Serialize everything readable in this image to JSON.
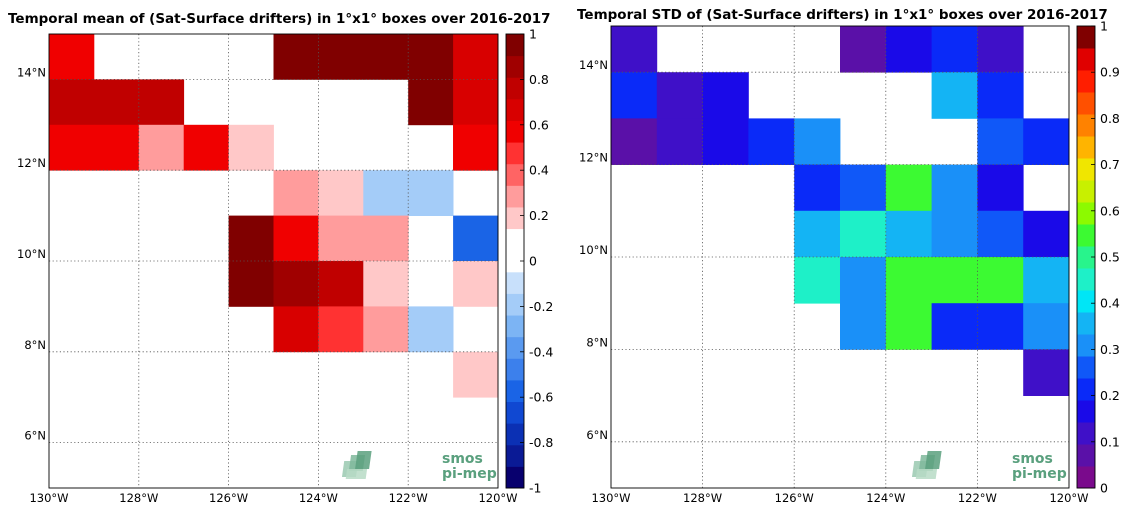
{
  "chart_data": [
    {
      "type": "heatmap",
      "title": "Temporal mean of (Sat-Surface drifters) in 1°x1° boxes over 2016-2017",
      "xlim": [
        -130,
        -120
      ],
      "ylim": [
        5,
        15
      ],
      "xticks": [
        {
          "value": -130,
          "label": "130°W"
        },
        {
          "value": -128,
          "label": "128°W"
        },
        {
          "value": -126,
          "label": "126°W"
        },
        {
          "value": -124,
          "label": "124°W"
        },
        {
          "value": -122,
          "label": "122°W"
        },
        {
          "value": -120,
          "label": "120°W"
        }
      ],
      "yticks": [
        {
          "value": 6,
          "label": "6°N"
        },
        {
          "value": 8,
          "label": "8°N"
        },
        {
          "value": 10,
          "label": "10°N"
        },
        {
          "value": 12,
          "label": "12°N"
        },
        {
          "value": 14,
          "label": "14°N"
        }
      ],
      "grid": true,
      "colorbar": {
        "range": [
          -1,
          1
        ],
        "ticks": [
          "-1",
          "-0.8",
          "-0.6",
          "-0.4",
          "-0.2",
          "0",
          "0.2",
          "0.4",
          "0.6",
          "0.8",
          "1"
        ],
        "colors": [
          "#08006e",
          "#0a1a95",
          "#0b30b4",
          "#1048d2",
          "#1a64e6",
          "#3c80ec",
          "#5a9af0",
          "#7cb4f4",
          "#a4ccf8",
          "#c8e0fb",
          "#ffffff",
          "#ffffff",
          "#ffc8c8",
          "#ff9c9c",
          "#ff6464",
          "#ff3232",
          "#f00000",
          "#d80000",
          "#c00000",
          "#a00000",
          "#800000"
        ]
      },
      "cells": [
        {
          "lon": -130,
          "lat": 14,
          "value": 0.55
        },
        {
          "lon": -125,
          "lat": 14,
          "value": 0.95
        },
        {
          "lon": -124,
          "lat": 14,
          "value": 0.95
        },
        {
          "lon": -123,
          "lat": 14,
          "value": 0.95
        },
        {
          "lon": -122,
          "lat": 14,
          "value": 0.95
        },
        {
          "lon": -121,
          "lat": 14,
          "value": 0.65
        },
        {
          "lon": -130,
          "lat": 13,
          "value": 0.75
        },
        {
          "lon": -129,
          "lat": 13,
          "value": 0.75
        },
        {
          "lon": -128,
          "lat": 13,
          "value": 0.75
        },
        {
          "lon": -122,
          "lat": 13,
          "value": 0.95
        },
        {
          "lon": -121,
          "lat": 13,
          "value": 0.7
        },
        {
          "lon": -130,
          "lat": 12,
          "value": 0.6
        },
        {
          "lon": -129,
          "lat": 12,
          "value": 0.6
        },
        {
          "lon": -128,
          "lat": 12,
          "value": 0.25
        },
        {
          "lon": -127,
          "lat": 12,
          "value": 0.6
        },
        {
          "lon": -126,
          "lat": 12,
          "value": 0.15
        },
        {
          "lon": -121,
          "lat": 12,
          "value": 0.6
        },
        {
          "lon": -120.999,
          "lat": 12,
          "value": 0.6
        },
        {
          "lon": -125,
          "lat": 11,
          "value": 0.25
        },
        {
          "lon": -124,
          "lat": 11,
          "value": 0.15
        },
        {
          "lon": -123,
          "lat": 11,
          "value": -0.15
        },
        {
          "lon": -122,
          "lat": 11,
          "value": -0.15
        },
        {
          "lon": -126,
          "lat": 10,
          "value": 0.95
        },
        {
          "lon": -125,
          "lat": 10,
          "value": 0.6
        },
        {
          "lon": -124,
          "lat": 10,
          "value": 0.25
        },
        {
          "lon": -123,
          "lat": 10,
          "value": 0.25
        },
        {
          "lon": -121,
          "lat": 10,
          "value": -0.55
        },
        {
          "lon": -126,
          "lat": 9,
          "value": 0.95
        },
        {
          "lon": -125,
          "lat": 9,
          "value": 0.9
        },
        {
          "lon": -124,
          "lat": 9,
          "value": 0.8
        },
        {
          "lon": -123,
          "lat": 9,
          "value": 0.15
        },
        {
          "lon": -121,
          "lat": 9,
          "value": 0.15
        },
        {
          "lon": -125,
          "lat": 8,
          "value": 0.7
        },
        {
          "lon": -124,
          "lat": 8,
          "value": 0.5
        },
        {
          "lon": -123,
          "lat": 8,
          "value": 0.25
        },
        {
          "lon": -122,
          "lat": 8,
          "value": -0.15
        },
        {
          "lon": -121,
          "lat": 7,
          "value": 0.15
        }
      ]
    },
    {
      "type": "heatmap",
      "title": "Temporal STD of (Sat-Surface drifters) in 1°x1° boxes over 2016-2017",
      "xlim": [
        -130,
        -120
      ],
      "ylim": [
        5,
        15
      ],
      "xticks": [
        {
          "value": -130,
          "label": "130°W"
        },
        {
          "value": -128,
          "label": "128°W"
        },
        {
          "value": -126,
          "label": "126°W"
        },
        {
          "value": -124,
          "label": "124°W"
        },
        {
          "value": -122,
          "label": "122°W"
        },
        {
          "value": -120,
          "label": "120°W"
        }
      ],
      "yticks": [
        {
          "value": 6,
          "label": "6°N"
        },
        {
          "value": 8,
          "label": "8°N"
        },
        {
          "value": 10,
          "label": "10°N"
        },
        {
          "value": 12,
          "label": "12°N"
        },
        {
          "value": 14,
          "label": "14°N"
        }
      ],
      "grid": true,
      "colorbar": {
        "range": [
          0,
          1
        ],
        "ticks": [
          "0",
          "0.1",
          "0.2",
          "0.3",
          "0.4",
          "0.5",
          "0.6",
          "0.7",
          "0.8",
          "0.9",
          "1"
        ],
        "colors": [
          "#7a0a8c",
          "#5a10a8",
          "#3f10c8",
          "#1a0ae8",
          "#0a2af8",
          "#1058f8",
          "#1a90f8",
          "#14b4f4",
          "#00e6f6",
          "#1ef0c8",
          "#28f48c",
          "#3cfa32",
          "#8cfa00",
          "#c8f000",
          "#f0e600",
          "#ffb400",
          "#ff8200",
          "#ff5000",
          "#ff1e00",
          "#e00000",
          "#800000"
        ]
      },
      "cells": [
        {
          "lon": -130,
          "lat": 14,
          "value": 0.12
        },
        {
          "lon": -125,
          "lat": 14,
          "value": 0.05
        },
        {
          "lon": -124,
          "lat": 14,
          "value": 0.15
        },
        {
          "lon": -123,
          "lat": 14,
          "value": 0.2
        },
        {
          "lon": -122,
          "lat": 14,
          "value": 0.12
        },
        {
          "lon": -130,
          "lat": 13,
          "value": 0.2
        },
        {
          "lon": -129,
          "lat": 13,
          "value": 0.12
        },
        {
          "lon": -128,
          "lat": 13,
          "value": 0.15
        },
        {
          "lon": -123,
          "lat": 13,
          "value": 0.38
        },
        {
          "lon": -122,
          "lat": 13,
          "value": 0.2
        },
        {
          "lon": -130,
          "lat": 12,
          "value": 0.05
        },
        {
          "lon": -129,
          "lat": 12,
          "value": 0.12
        },
        {
          "lon": -128,
          "lat": 12,
          "value": 0.15
        },
        {
          "lon": -127,
          "lat": 12,
          "value": 0.2
        },
        {
          "lon": -126,
          "lat": 12,
          "value": 0.33
        },
        {
          "lon": -122,
          "lat": 12,
          "value": 0.24
        },
        {
          "lon": -121,
          "lat": 12,
          "value": 0.2
        },
        {
          "lon": -126,
          "lat": 11,
          "value": 0.2
        },
        {
          "lon": -125,
          "lat": 11,
          "value": 0.24
        },
        {
          "lon": -124,
          "lat": 11,
          "value": 0.57
        },
        {
          "lon": -123,
          "lat": 11,
          "value": 0.33
        },
        {
          "lon": -122,
          "lat": 11,
          "value": 0.15
        },
        {
          "lon": -126,
          "lat": 10,
          "value": 0.38
        },
        {
          "lon": -125,
          "lat": 10,
          "value": 0.47
        },
        {
          "lon": -124,
          "lat": 10,
          "value": 0.38
        },
        {
          "lon": -123,
          "lat": 10,
          "value": 0.33
        },
        {
          "lon": -122,
          "lat": 10,
          "value": 0.24
        },
        {
          "lon": -121,
          "lat": 10,
          "value": 0.15
        },
        {
          "lon": -126,
          "lat": 9,
          "value": 0.43
        },
        {
          "lon": -125,
          "lat": 9,
          "value": 0.3
        },
        {
          "lon": -124,
          "lat": 9,
          "value": 0.57
        },
        {
          "lon": -123,
          "lat": 9,
          "value": 0.57
        },
        {
          "lon": -122,
          "lat": 9,
          "value": 0.57
        },
        {
          "lon": -121,
          "lat": 9,
          "value": 0.38
        },
        {
          "lon": -125,
          "lat": 8,
          "value": 0.3
        },
        {
          "lon": -124,
          "lat": 8,
          "value": 0.57
        },
        {
          "lon": -123,
          "lat": 8,
          "value": 0.22
        },
        {
          "lon": -122,
          "lat": 8,
          "value": 0.2
        },
        {
          "lon": -121,
          "lat": 8,
          "value": 0.3
        },
        {
          "lon": -121,
          "lat": 7,
          "value": 0.12
        }
      ]
    }
  ],
  "logo": {
    "line1": "smos",
    "line2": "pi-mep"
  }
}
